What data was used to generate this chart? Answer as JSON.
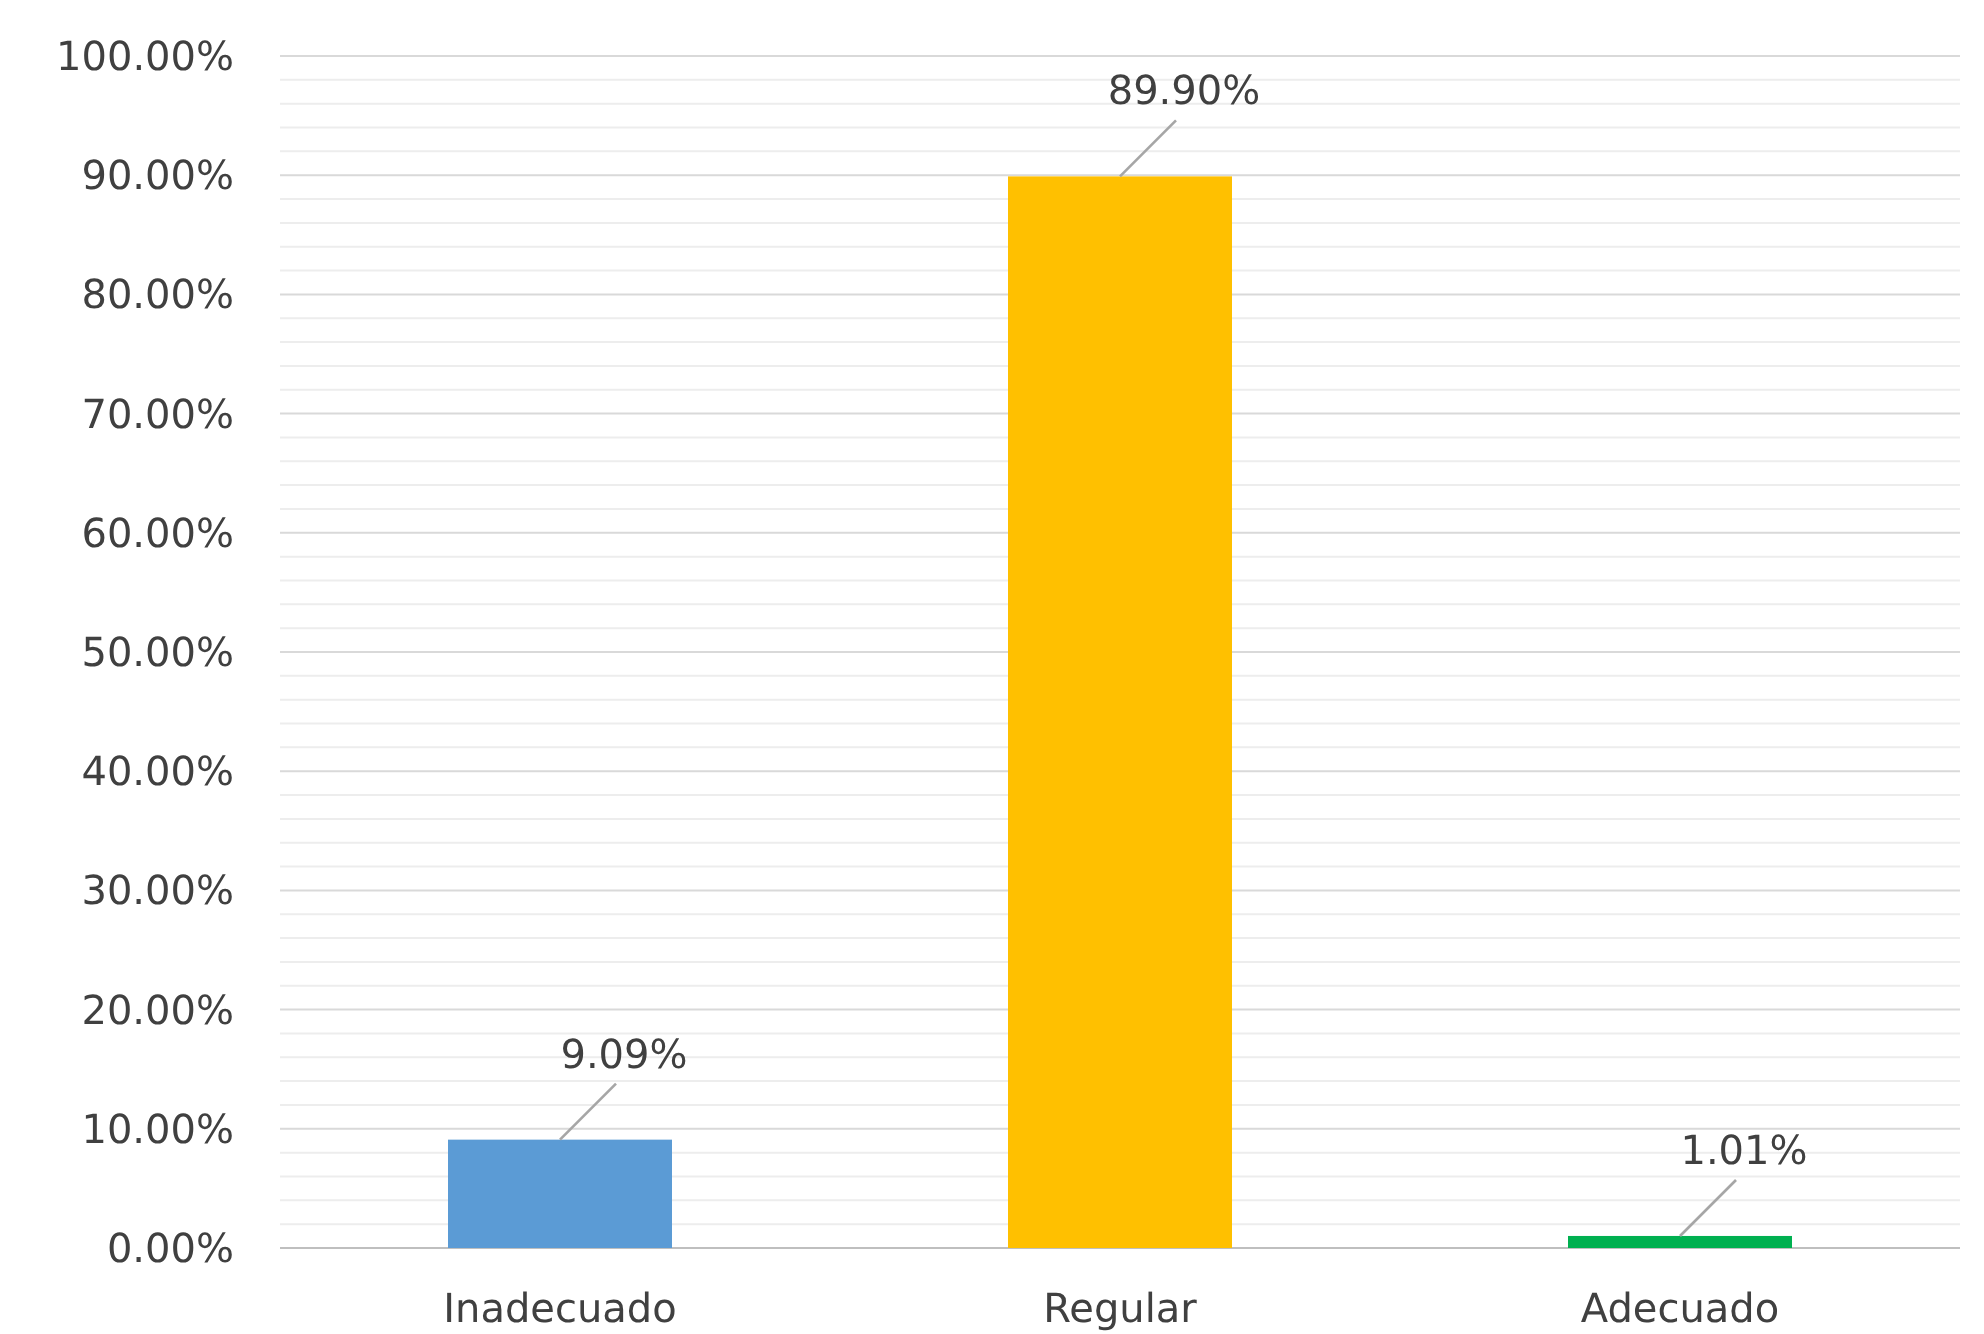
{
  "chart_data": {
    "type": "bar",
    "categories": [
      "Inadecuado",
      "Regular",
      "Adecuado"
    ],
    "values": [
      9.09,
      89.9,
      1.01
    ],
    "colors": [
      "#5b9bd5",
      "#ffc000",
      "#00b050"
    ],
    "value_labels": [
      "9.09%",
      "89.90%",
      "1.01%"
    ],
    "ylim": [
      0,
      100
    ],
    "yticks": [
      {
        "value": 0,
        "label": "0.00%"
      },
      {
        "value": 2,
        "label": null
      },
      {
        "value": 4,
        "label": null
      },
      {
        "value": 6,
        "label": null
      },
      {
        "value": 8,
        "label": null
      },
      {
        "value": 10,
        "label": "10.00%"
      },
      {
        "value": 12,
        "label": null
      },
      {
        "value": 14,
        "label": null
      },
      {
        "value": 16,
        "label": null
      },
      {
        "value": 18,
        "label": null
      },
      {
        "value": 20,
        "label": "20.00%"
      },
      {
        "value": 22,
        "label": null
      },
      {
        "value": 24,
        "label": null
      },
      {
        "value": 26,
        "label": null
      },
      {
        "value": 28,
        "label": null
      },
      {
        "value": 30,
        "label": "30.00%"
      },
      {
        "value": 32,
        "label": null
      },
      {
        "value": 34,
        "label": null
      },
      {
        "value": 36,
        "label": null
      },
      {
        "value": 38,
        "label": null
      },
      {
        "value": 40,
        "label": "40.00%"
      },
      {
        "value": 42,
        "label": null
      },
      {
        "value": 44,
        "label": null
      },
      {
        "value": 46,
        "label": null
      },
      {
        "value": 48,
        "label": null
      },
      {
        "value": 50,
        "label": "50.00%"
      },
      {
        "value": 52,
        "label": null
      },
      {
        "value": 54,
        "label": null
      },
      {
        "value": 56,
        "label": null
      },
      {
        "value": 58,
        "label": null
      },
      {
        "value": 60,
        "label": "60.00%"
      },
      {
        "value": 62,
        "label": null
      },
      {
        "value": 64,
        "label": null
      },
      {
        "value": 66,
        "label": null
      },
      {
        "value": 68,
        "label": null
      },
      {
        "value": 70,
        "label": "70.00%"
      },
      {
        "value": 72,
        "label": null
      },
      {
        "value": 74,
        "label": null
      },
      {
        "value": 76,
        "label": null
      },
      {
        "value": 78,
        "label": null
      },
      {
        "value": 80,
        "label": "80.00%"
      },
      {
        "value": 82,
        "label": null
      },
      {
        "value": 84,
        "label": null
      },
      {
        "value": 86,
        "label": null
      },
      {
        "value": 88,
        "label": null
      },
      {
        "value": 90,
        "label": "90.00%"
      },
      {
        "value": 92,
        "label": null
      },
      {
        "value": 94,
        "label": null
      },
      {
        "value": 96,
        "label": null
      },
      {
        "value": 98,
        "label": null
      },
      {
        "value": 100,
        "label": "100.00%"
      }
    ],
    "grid": true
  }
}
